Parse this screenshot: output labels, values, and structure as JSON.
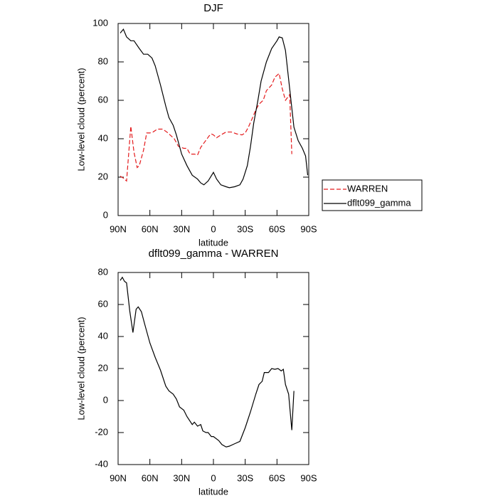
{
  "chart_data": [
    {
      "type": "line",
      "title": "DJF",
      "x_label": "latitude",
      "y_label": "Low-level cloud (percent)",
      "xlim": [
        90,
        -90
      ],
      "ylim": [
        0,
        100
      ],
      "xticks": [
        {
          "value": 90,
          "label": "90N"
        },
        {
          "value": 60,
          "label": "60N"
        },
        {
          "value": 30,
          "label": "30N"
        },
        0,
        {
          "value": -30,
          "label": "30S"
        },
        {
          "value": -60,
          "label": "60S"
        },
        {
          "value": -90,
          "label": "90S"
        }
      ],
      "yticks": [
        0,
        20,
        40,
        60,
        80,
        100
      ],
      "legend": true,
      "series": [
        {
          "name": "WARREN",
          "color": "#e41a1c",
          "dashed": true,
          "x": [
            88,
            85,
            82,
            78,
            75,
            72,
            70,
            66,
            63,
            60,
            57,
            53,
            48,
            44,
            40,
            37,
            33,
            28,
            25,
            22,
            18,
            15,
            12,
            8,
            4,
            2,
            0,
            -3,
            -7,
            -12,
            -17,
            -22,
            -27,
            -30,
            -33,
            -37,
            -40,
            -43,
            -47,
            -50,
            -55,
            -58,
            -62,
            -65,
            -68,
            -72,
            -74
          ],
          "values": [
            20.5,
            19.5,
            18,
            46.5,
            33,
            25,
            26,
            34,
            43,
            43,
            43.5,
            45,
            45,
            43.5,
            41.5,
            40,
            36,
            35,
            35,
            32,
            32,
            31.5,
            35.5,
            38.5,
            41.5,
            42.5,
            42,
            40.5,
            42,
            43.5,
            43.5,
            42.5,
            42,
            43,
            46,
            51,
            55,
            58,
            60,
            65,
            68,
            72,
            74,
            66,
            60,
            63,
            32
          ]
        },
        {
          "name": "dflt099_gamma",
          "color": "#000000",
          "dashed": false,
          "x": [
            88,
            85,
            82,
            78,
            75,
            70,
            66,
            62,
            58,
            55,
            50,
            45,
            42,
            38,
            35,
            30,
            25,
            20,
            15,
            12,
            9,
            5,
            0,
            -3,
            -7,
            -12,
            -15,
            -20,
            -25,
            -28,
            -32,
            -35,
            -38,
            -42,
            -45,
            -50,
            -55,
            -60,
            -62,
            -65,
            -68,
            -72,
            -76,
            -80,
            -84,
            -87,
            -89
          ],
          "values": [
            95,
            97,
            93,
            91,
            91,
            87,
            84,
            84,
            82,
            78,
            68,
            57,
            51,
            47,
            42,
            32,
            26,
            21,
            19,
            17,
            16,
            18,
            22.5,
            19,
            16,
            15,
            14.5,
            15,
            16,
            19,
            26,
            36,
            48,
            60,
            70,
            80,
            87,
            91,
            93,
            92.5,
            86,
            66,
            46,
            39,
            35,
            31,
            21
          ]
        }
      ]
    },
    {
      "type": "line",
      "title": "dflt099_gamma - WARREN",
      "x_label": "latitude",
      "y_label": "Low-level cloud (percent)",
      "xlim": [
        90,
        -90
      ],
      "ylim": [
        -40,
        80
      ],
      "xticks": [
        {
          "value": 90,
          "label": "90N"
        },
        {
          "value": 60,
          "label": "60N"
        },
        {
          "value": 30,
          "label": "30N"
        },
        0,
        {
          "value": -30,
          "label": "30S"
        },
        {
          "value": -60,
          "label": "60S"
        },
        {
          "value": -90,
          "label": "90S"
        }
      ],
      "yticks": [
        -40,
        -20,
        0,
        20,
        40,
        60,
        80
      ],
      "legend": false,
      "series": [
        {
          "color": "#000000",
          "dashed": false,
          "x": [
            88,
            86,
            84,
            82,
            79,
            76,
            73,
            71,
            68,
            65,
            60,
            55,
            50,
            45,
            42,
            38,
            35,
            32,
            28,
            25,
            20,
            18,
            15,
            12,
            10,
            7,
            5,
            2,
            0,
            -5,
            -8,
            -12,
            -15,
            -20,
            -25,
            -30,
            -35,
            -40,
            -43,
            -46,
            -48,
            -52,
            -55,
            -58,
            -61,
            -64,
            -66,
            -68,
            -71,
            -74,
            -76
          ],
          "values": [
            75,
            77,
            74.5,
            73.5,
            56,
            42.5,
            57,
            58.5,
            55.5,
            48,
            36,
            27,
            19,
            9,
            6,
            4,
            1,
            -4,
            -6,
            -10,
            -15,
            -13.5,
            -16,
            -15,
            -19,
            -20,
            -20,
            -22.5,
            -22.5,
            -25,
            -27.5,
            -29,
            -28.5,
            -27,
            -25.5,
            -17,
            -7,
            4,
            10,
            12,
            17.5,
            17.5,
            20,
            19.5,
            20,
            18.5,
            19.5,
            10,
            4,
            -18.5,
            6
          ]
        }
      ]
    }
  ]
}
